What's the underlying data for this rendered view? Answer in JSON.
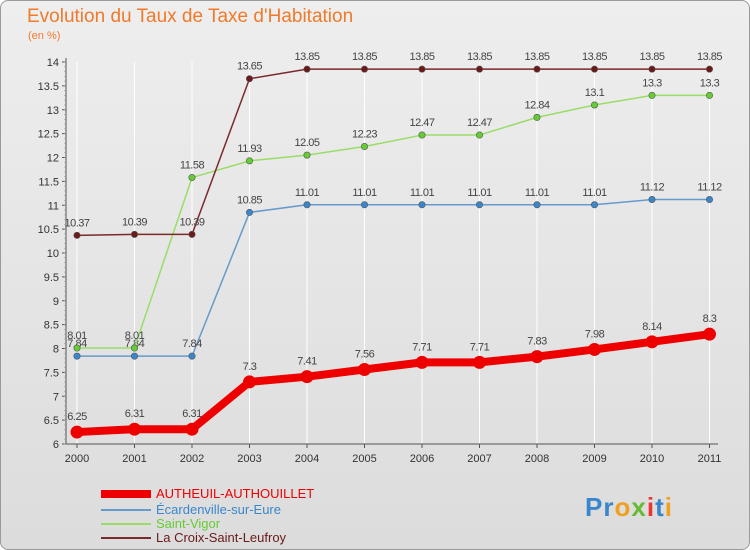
{
  "title": "Evolution du Taux de Taxe d'Habitation",
  "subtitle": "(en %)",
  "chart_data": {
    "type": "line",
    "title": "Evolution du Taux de Taxe d'Habitation",
    "ylabel": "(en %)",
    "xlabel": "",
    "x": [
      "2000",
      "2001",
      "2002",
      "2003",
      "2004",
      "2005",
      "2006",
      "2007",
      "2008",
      "2009",
      "2010",
      "2011"
    ],
    "ylim": [
      6,
      14
    ],
    "yticks": [
      "6",
      "6.5",
      "7",
      "7.5",
      "8",
      "8.5",
      "9",
      "9.5",
      "10",
      "10.5",
      "11",
      "11.5",
      "12",
      "12.5",
      "13",
      "13.5",
      "14"
    ],
    "grid": "vertical",
    "legend_position": "bottom-left",
    "series": [
      {
        "name": "AUTHEUIL-AUTHOUILLET",
        "color": "#ee0000",
        "marker": "#ee0000",
        "width": 8,
        "values": [
          6.25,
          6.31,
          6.31,
          7.3,
          7.41,
          7.56,
          7.71,
          7.71,
          7.83,
          7.98,
          8.14,
          8.3
        ],
        "labels": [
          "6.25",
          "6.31",
          "6.31",
          "7.3",
          "7.41",
          "7.56",
          "7.71",
          "7.71",
          "7.83",
          "7.98",
          "8.14",
          "8.3"
        ]
      },
      {
        "name": "Écardenville-sur-Eure",
        "color": "#6699cc",
        "marker": "#3a86cc",
        "width": 1.5,
        "values": [
          7.84,
          7.84,
          7.84,
          10.85,
          11.01,
          11.01,
          11.01,
          11.01,
          11.01,
          11.01,
          11.12,
          11.12
        ],
        "labels": [
          "7.84",
          "7.84",
          "7.84",
          "10.85",
          "11.01",
          "11.01",
          "11.01",
          "11.01",
          "11.01",
          "11.01",
          "11.12",
          "11.12"
        ]
      },
      {
        "name": "Saint-Vigor",
        "color": "#99dd66",
        "marker": "#66cc33",
        "width": 1.5,
        "values": [
          8.01,
          8.01,
          11.58,
          11.93,
          12.05,
          12.23,
          12.47,
          12.47,
          12.84,
          13.1,
          13.3,
          13.3
        ],
        "labels": [
          "8.01",
          "8.01",
          "11.58",
          "11.93",
          "12.05",
          "12.23",
          "12.47",
          "12.47",
          "12.84",
          "13.1",
          "13.3",
          "13.3"
        ]
      },
      {
        "name": "La Croix-Saint-Leufroy",
        "color": "#7a2a2a",
        "marker": "#6a1a1a",
        "width": 1.5,
        "values": [
          10.37,
          10.39,
          10.39,
          13.65,
          13.85,
          13.85,
          13.85,
          13.85,
          13.85,
          13.85,
          13.85,
          13.85
        ],
        "labels": [
          "10.37",
          "10.39",
          "10.39",
          "13.65",
          "13.85",
          "13.85",
          "13.85",
          "13.85",
          "13.85",
          "13.85",
          "13.85",
          "13.85"
        ]
      }
    ]
  },
  "logo": {
    "text": "Proxiti",
    "letters": [
      {
        "ch": "P",
        "color": "#3a86cc"
      },
      {
        "ch": "r",
        "color": "#3a86cc"
      },
      {
        "ch": "o",
        "color": "#f0a020"
      },
      {
        "ch": "x",
        "color": "#66bb33"
      },
      {
        "ch": "i",
        "color": "#ee3333"
      },
      {
        "ch": "t",
        "color": "#3a86cc"
      },
      {
        "ch": "i",
        "color": "#f0a020"
      }
    ]
  }
}
